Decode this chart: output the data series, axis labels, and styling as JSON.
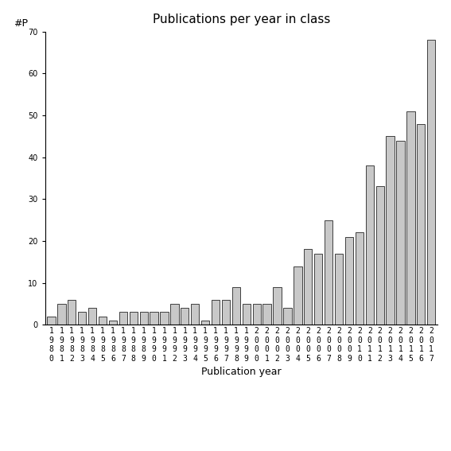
{
  "title": "Publications per year in class",
  "xlabel": "Publication year",
  "ylabel_text": "#P",
  "years": [
    "1980",
    "1981",
    "1982",
    "1983",
    "1984",
    "1985",
    "1986",
    "1987",
    "1988",
    "1989",
    "1990",
    "1991",
    "1992",
    "1993",
    "1994",
    "1995",
    "1996",
    "1997",
    "1998",
    "1999",
    "2000",
    "2001",
    "2002",
    "2003",
    "2004",
    "2005",
    "2006",
    "2007",
    "2008",
    "2009",
    "2010",
    "2011",
    "2012",
    "2013",
    "2014",
    "2015",
    "2016",
    "2017"
  ],
  "values": [
    2,
    5,
    6,
    3,
    4,
    2,
    1,
    3,
    3,
    3,
    3,
    3,
    5,
    4,
    5,
    1,
    6,
    6,
    9,
    5,
    5,
    5,
    9,
    4,
    14,
    18,
    17,
    25,
    17,
    21,
    22,
    38,
    33,
    45,
    44,
    51,
    48,
    68
  ],
  "bar_color": "#c8c8c8",
  "bar_edge_color": "#000000",
  "bar_edge_width": 0.5,
  "ylim": [
    0,
    70
  ],
  "yticks": [
    0,
    10,
    20,
    30,
    40,
    50,
    60,
    70
  ],
  "background_color": "#ffffff",
  "title_fontsize": 11,
  "axis_label_fontsize": 9,
  "tick_label_fontsize": 7,
  "ylabel_fontsize": 9
}
